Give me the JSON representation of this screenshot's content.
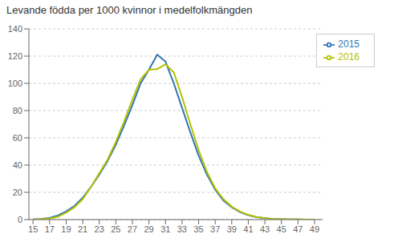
{
  "chart_data": {
    "type": "line",
    "title": "Levande födda per 1000 kvinnor i medelfolkmängden",
    "x": [
      15,
      16,
      17,
      18,
      19,
      20,
      21,
      22,
      23,
      24,
      25,
      26,
      27,
      28,
      29,
      30,
      31,
      32,
      33,
      34,
      35,
      36,
      37,
      38,
      39,
      40,
      41,
      42,
      43,
      44,
      45,
      46,
      47,
      48,
      49
    ],
    "series": [
      {
        "name": "2015",
        "color": "#2E75B6",
        "values": [
          0.2,
          0.5,
          1.2,
          3.0,
          6.0,
          10.0,
          16.0,
          24.0,
          33.0,
          43.0,
          55.0,
          69.0,
          84.0,
          100.0,
          110.0,
          121.0,
          116.0,
          100.0,
          82.0,
          64.0,
          47.0,
          33.0,
          22.0,
          14.0,
          9.0,
          5.5,
          3.2,
          1.8,
          1.0,
          0.5,
          0.3,
          0.15,
          0.08,
          0.04,
          0.02
        ]
      },
      {
        "name": "2016",
        "color": "#B5C200",
        "values": [
          0.1,
          0.3,
          0.8,
          2.0,
          5.0,
          9.0,
          15.0,
          24.0,
          34.0,
          44.0,
          57.0,
          72.0,
          88.0,
          103.0,
          110.0,
          110.5,
          114.0,
          108.0,
          90.0,
          70.0,
          51.0,
          35.0,
          23.0,
          15.0,
          9.5,
          6.0,
          3.5,
          1.9,
          1.1,
          0.5,
          0.3,
          0.15,
          0.08,
          0.04,
          0.02
        ]
      }
    ],
    "xlim": [
      14.5,
      50
    ],
    "xticks": [
      15,
      17,
      19,
      21,
      23,
      25,
      27,
      29,
      31,
      33,
      35,
      37,
      39,
      41,
      43,
      45,
      47,
      49
    ],
    "ylim": [
      0,
      140
    ],
    "yticks": [
      0,
      20,
      40,
      60,
      80,
      100,
      120,
      140
    ],
    "grid": "y",
    "legend": "upper right"
  }
}
